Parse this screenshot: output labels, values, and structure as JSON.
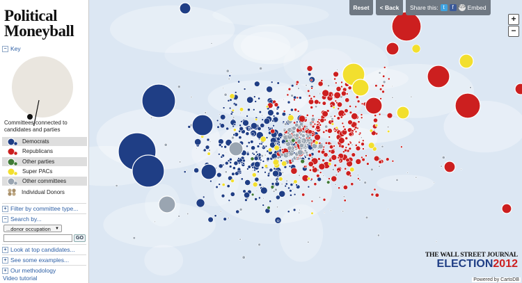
{
  "app": {
    "title_line1": "Political",
    "title_line2": "Moneyball"
  },
  "sidebar": {
    "key_label": "Key",
    "caption": "Committees connected to candidates and parties",
    "legend": [
      {
        "label": "Democrats",
        "color": "#1f3e85"
      },
      {
        "label": "Republicans",
        "color": "#cc1f1f"
      },
      {
        "label": "Other parties",
        "color": "#3f7a35"
      },
      {
        "label": "Super PACs",
        "color": "#f2df2e"
      },
      {
        "label": "Other committees",
        "color": "#9aa5b1"
      }
    ],
    "donors_label": "Individual Donors",
    "filter_label": "Filter by committee type...",
    "search_label": "Search by...",
    "search_select_value": "...donor occupation",
    "search_input_value": "",
    "go_label": "GO",
    "look_label": "Look at top candidates...",
    "examples_label": "See some examples...",
    "methodology_label": "Our methodology",
    "video_label": "Video tutorial"
  },
  "toolbar": {
    "reset_label": "Reset",
    "back_label": "< Back",
    "share_label": "Share this:",
    "embed_label": "Embed",
    "twitter_icon_text": "t",
    "facebook_icon_text": "f",
    "zoom_in": "+",
    "zoom_out": "−"
  },
  "branding": {
    "wsj": "THE WALL STREET JOURNAL",
    "election_word": "ELECTION",
    "election_year": "2012",
    "powered_by": "Powered by CartoDB"
  },
  "colors": {
    "democrat": "#1f3e85",
    "republican": "#cc1f1f",
    "other_party": "#3f7a35",
    "super_pac": "#f2df2e",
    "other_committee": "#9aa5b1",
    "toolbar": "#6f7882",
    "map_bg": "#dce7f3"
  }
}
